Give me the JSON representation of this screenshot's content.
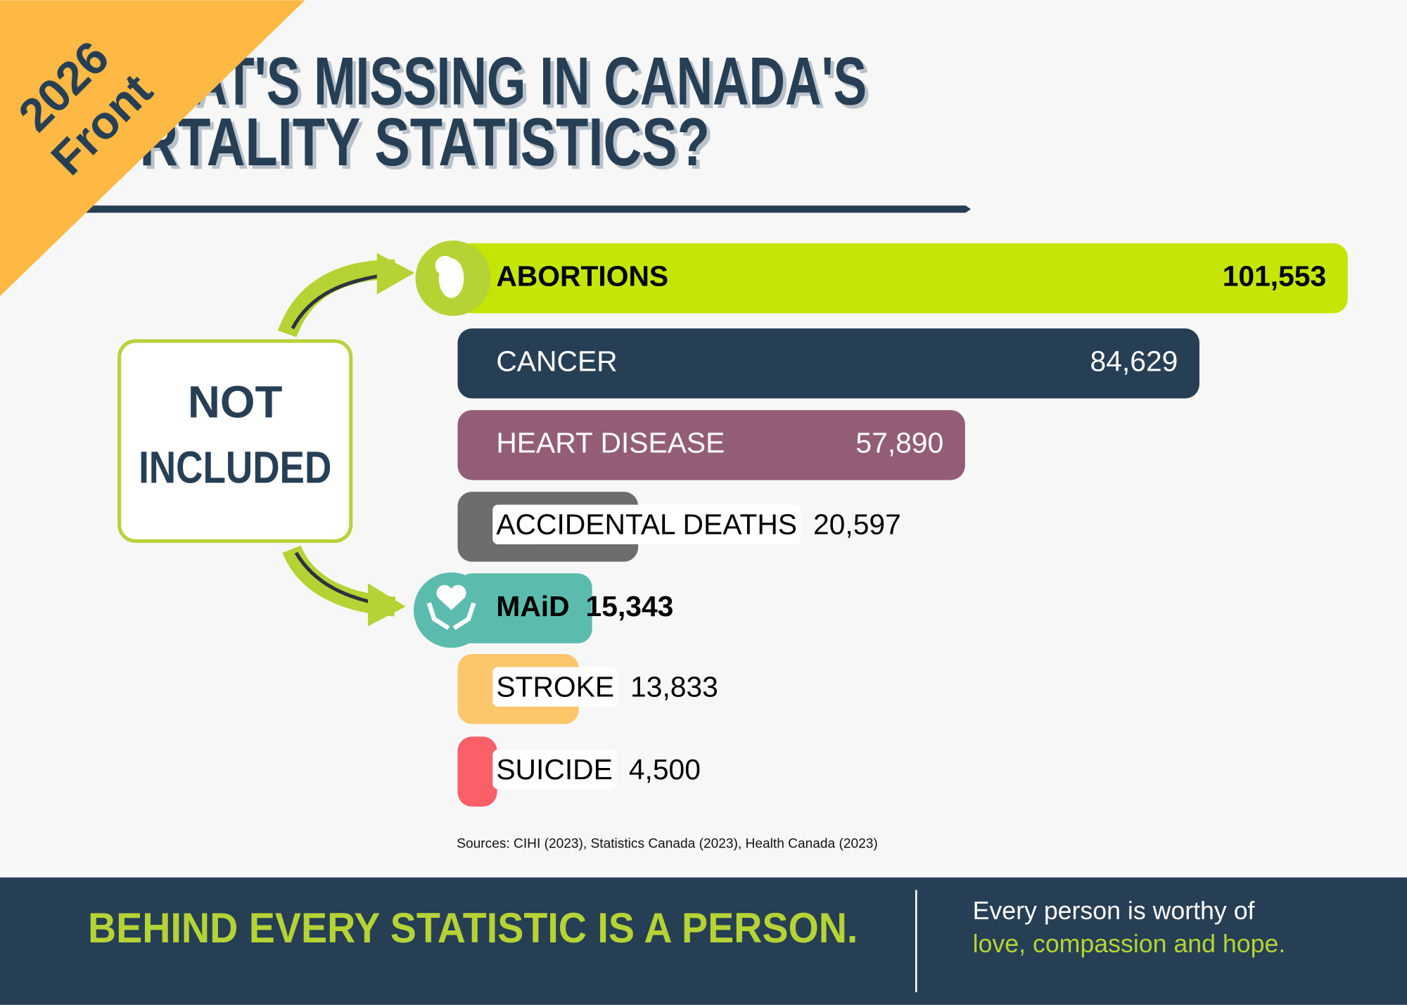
{
  "chart_data": {
    "type": "bar",
    "orientation": "horizontal",
    "title": "WHAT'S MISSING IN CANADA'S",
    "title_line2": "MORTALITY STATISTICS?",
    "badge": [
      "2026",
      "Front"
    ],
    "annotation": [
      "NOT",
      "INCLUDED"
    ],
    "categories": [
      "ABORTIONS",
      "CANCER",
      "HEART DISEASE",
      "ACCIDENTAL DEATHS",
      "MAiD",
      "STROKE",
      "SUICIDE"
    ],
    "values": [
      101553,
      84629,
      57890,
      20597,
      15343,
      13833,
      4500
    ],
    "value_labels": [
      "101,553",
      "84,629",
      "57,890",
      "20,597",
      "15,343",
      "13,833",
      "4,500"
    ],
    "colors": [
      "#c5e504",
      "#263f55",
      "#935d77",
      "#6d6d6d",
      "#5bbcad",
      "#fcc66b",
      "#fb5f68"
    ],
    "bold": [
      true,
      false,
      false,
      false,
      true,
      false,
      false
    ],
    "source": "Sources: CIHI (2023), Statistics Canada (2023), Health Canada (2023)",
    "footer": {
      "headline": "BEHIND EVERY STATISTIC IS A PERSON.",
      "line1": "Every person is worthy of",
      "line2": "love, compassion and hope."
    }
  }
}
